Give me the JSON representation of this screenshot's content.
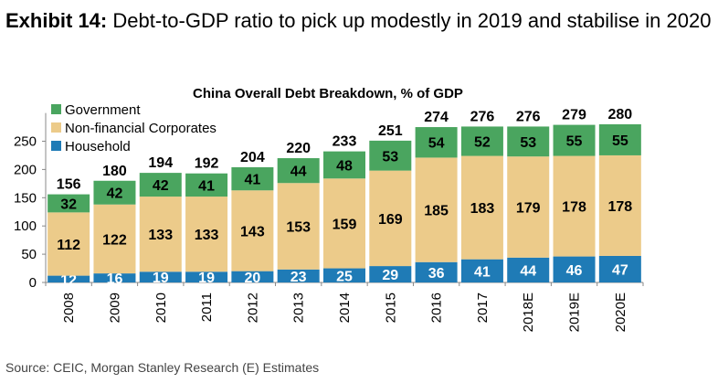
{
  "exhibit": {
    "label": "Exhibit 14:",
    "text": "Debt-to-GDP ratio to pick up modestly in 2019 and stabilise in 2020"
  },
  "source": "Source: CEIC, Morgan Stanley Research (E) Estimates",
  "chart_data": {
    "type": "bar",
    "stacked": true,
    "title": "China Overall Debt Breakdown, % of GDP",
    "xlabel": "",
    "ylabel": "",
    "categories": [
      "2008",
      "2009",
      "2010",
      "2011",
      "2012",
      "2013",
      "2014",
      "2015",
      "2016",
      "2017",
      "2018E",
      "2019E",
      "2020E"
    ],
    "series": [
      {
        "name": "Household",
        "color": "#1f7bb6",
        "values": [
          12,
          16,
          19,
          19,
          20,
          23,
          25,
          29,
          36,
          41,
          44,
          46,
          47
        ]
      },
      {
        "name": "Non-financial Corporates",
        "color": "#eccb8a",
        "values": [
          112,
          122,
          133,
          133,
          143,
          153,
          159,
          169,
          185,
          183,
          179,
          178,
          178
        ]
      },
      {
        "name": "Government",
        "color": "#4aa55f",
        "values": [
          32,
          42,
          42,
          41,
          41,
          44,
          48,
          53,
          54,
          52,
          53,
          55,
          55
        ]
      }
    ],
    "totals": [
      156,
      180,
      194,
      192,
      204,
      220,
      233,
      251,
      274,
      276,
      276,
      279,
      280
    ],
    "yticks": [
      0,
      50,
      100,
      150,
      200,
      250
    ],
    "ylim": [
      0,
      300
    ],
    "legend_order": [
      "Government",
      "Non-financial Corporates",
      "Household"
    ],
    "legend_position": "top-left",
    "grid": false
  }
}
